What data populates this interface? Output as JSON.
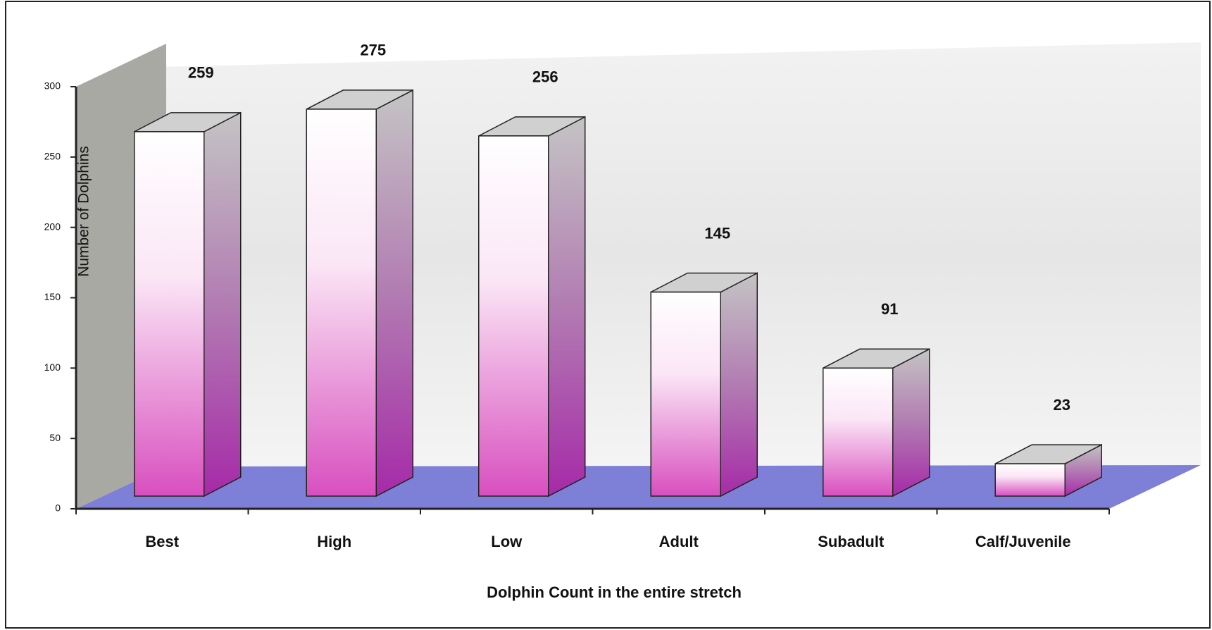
{
  "chart_data": {
    "type": "bar3d",
    "x_label": "Dolphin Count in the entire stretch",
    "y_label": "Number of Dolphins",
    "categories": [
      "Best",
      "High",
      "Low",
      "Adult",
      "Subadult",
      "Calf/Juvenile"
    ],
    "values": [
      259,
      275,
      256,
      145,
      91,
      23
    ],
    "color": "#d84fbf",
    "ylim": [
      0,
      300
    ],
    "yticks": [
      0,
      50,
      100,
      150,
      200,
      250,
      300
    ]
  }
}
